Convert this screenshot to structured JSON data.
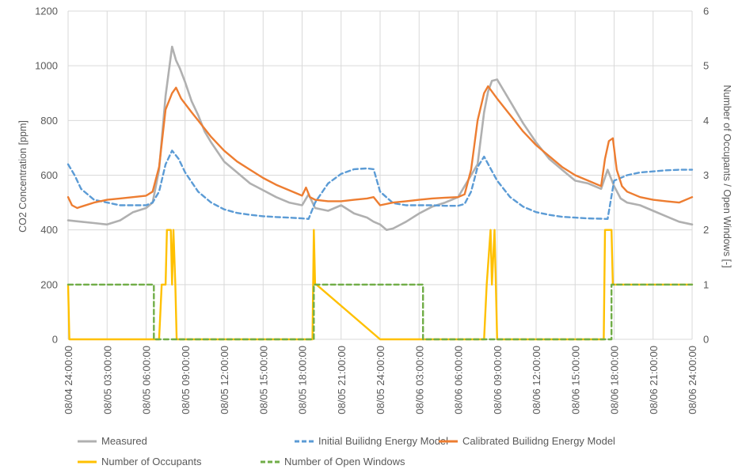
{
  "chart_data": {
    "type": "line",
    "ylabel": "CO2 Concentration [ppm]",
    "y2label": "Number of Occupants / Open Windows [-]",
    "ylim": [
      0,
      1200
    ],
    "y2lim": [
      0,
      6
    ],
    "yticks": [
      "0",
      "200",
      "400",
      "600",
      "800",
      "1000",
      "1200"
    ],
    "y2ticks": [
      "0",
      "1",
      "2",
      "3",
      "4",
      "5",
      "6"
    ],
    "x_unit": "hours from 08/04 24:00:00",
    "xlim": [
      0,
      48
    ],
    "xticks": [
      "08/04 24:00:00",
      "08/05 03:00:00",
      "08/05 06:00:00",
      "08/05 09:00:00",
      "08/05 12:00:00",
      "08/05 15:00:00",
      "08/05 18:00:00",
      "08/05 21:00:00",
      "08/05 24:00:00",
      "08/06 03:00:00",
      "08/06 06:00:00",
      "08/06 09:00:00",
      "08/06 12:00:00",
      "08/06 15:00:00",
      "08/06 18:00:00",
      "08/06 21:00:00",
      "08/06 24:00:00"
    ],
    "grid": true,
    "legend_position": "bottom",
    "series": [
      {
        "name": "Measured",
        "axis": "left",
        "color": "#b0b0b0",
        "style": "solid",
        "x": [
          0,
          1,
          2,
          3,
          4,
          5,
          6,
          6.5,
          7,
          7.5,
          7.8,
          8,
          8.3,
          8.6,
          9,
          9.5,
          10,
          10.5,
          11,
          12,
          13,
          14,
          15,
          16,
          17,
          18,
          18.5,
          19,
          20,
          21,
          22,
          23,
          23.5,
          24,
          24.5,
          25,
          26,
          27,
          28,
          29,
          30,
          31,
          31.5,
          32,
          32.3,
          32.6,
          33,
          33.5,
          34,
          35,
          36,
          37,
          38,
          39,
          40,
          41,
          41.5,
          42,
          42.5,
          43,
          44,
          45,
          46,
          47,
          48
        ],
        "values": [
          435,
          430,
          425,
          420,
          435,
          465,
          480,
          500,
          620,
          890,
          1000,
          1070,
          1020,
          990,
          940,
          870,
          820,
          760,
          720,
          650,
          610,
          570,
          545,
          520,
          500,
          490,
          530,
          480,
          470,
          490,
          460,
          445,
          430,
          420,
          400,
          405,
          430,
          460,
          485,
          500,
          520,
          600,
          640,
          830,
          905,
          945,
          950,
          910,
          870,
          790,
          720,
          660,
          620,
          580,
          570,
          550,
          620,
          560,
          515,
          500,
          490,
          470,
          450,
          430,
          420
        ]
      },
      {
        "name": "Initial Builidng Energy Model",
        "axis": "left",
        "color": "#5b9bd5",
        "style": "dashed",
        "x": [
          0,
          0.5,
          1,
          2,
          3,
          4,
          5,
          6,
          6.5,
          7,
          7.5,
          8,
          8.5,
          9,
          10,
          11,
          12,
          13,
          14,
          15,
          16,
          17,
          18,
          18.5,
          19,
          20,
          21,
          22,
          23,
          23.5,
          24,
          25,
          26,
          27,
          28,
          29,
          30,
          30.5,
          31,
          31.5,
          32,
          33,
          34,
          35,
          36,
          37,
          38,
          39,
          40,
          41,
          41.5,
          42,
          43,
          44,
          45,
          46,
          47,
          48
        ],
        "values": [
          640,
          600,
          550,
          510,
          500,
          490,
          490,
          490,
          500,
          540,
          640,
          690,
          660,
          610,
          540,
          500,
          475,
          462,
          455,
          450,
          447,
          445,
          442,
          440,
          500,
          570,
          605,
          622,
          625,
          622,
          540,
          498,
          490,
          490,
          490,
          488,
          488,
          495,
          540,
          630,
          668,
          580,
          520,
          485,
          465,
          455,
          448,
          445,
          442,
          441,
          440,
          580,
          600,
          610,
          614,
          618,
          620,
          620
        ]
      },
      {
        "name": "Calibrated Builidng Energy Model",
        "axis": "left",
        "color": "#ed7d31",
        "style": "solid",
        "x": [
          0,
          0.3,
          0.7,
          1,
          2,
          3,
          4,
          5,
          6,
          6.5,
          7,
          7.5,
          8,
          8.3,
          8.7,
          9.5,
          10,
          11,
          12,
          13,
          14,
          15,
          16,
          17,
          18,
          18.3,
          18.6,
          19,
          20,
          21,
          22,
          23,
          23.5,
          24,
          25,
          26,
          27,
          28,
          29,
          30,
          30.5,
          31,
          31.5,
          32,
          32.3,
          33,
          34,
          35,
          36,
          37,
          38,
          39,
          40,
          41,
          41.3,
          41.6,
          41.9,
          42.2,
          42.6,
          43,
          44,
          45,
          46,
          47,
          48
        ],
        "values": [
          520,
          490,
          480,
          485,
          500,
          510,
          515,
          520,
          525,
          540,
          630,
          840,
          900,
          920,
          880,
          830,
          800,
          740,
          690,
          650,
          620,
          590,
          565,
          545,
          525,
          555,
          520,
          510,
          505,
          505,
          510,
          515,
          520,
          490,
          500,
          505,
          510,
          515,
          518,
          520,
          530,
          620,
          800,
          900,
          925,
          880,
          820,
          760,
          710,
          670,
          630,
          600,
          580,
          560,
          660,
          725,
          735,
          620,
          560,
          540,
          520,
          510,
          505,
          500,
          520
        ]
      },
      {
        "name": "Number of Occupants",
        "axis": "right",
        "color": "#ffc000",
        "style": "solid",
        "x": [
          0,
          0.1,
          7,
          7.2,
          7.5,
          7.6,
          7.9,
          8,
          8.1,
          8.25,
          8.35,
          8.5,
          18.8,
          18.9,
          19.0,
          19.1,
          24,
          32,
          32.2,
          32.5,
          32.6,
          32.8,
          33,
          41.2,
          41.3,
          41.8,
          41.9,
          48
        ],
        "values": [
          1,
          0,
          0,
          1,
          1,
          2,
          2,
          1,
          2,
          1,
          0,
          0,
          0,
          2,
          1,
          1,
          0,
          0,
          1,
          2,
          1,
          2,
          0,
          0,
          2,
          2,
          1,
          1
        ]
      },
      {
        "name": "Number of Open Windows",
        "axis": "right",
        "color": "#70ad47",
        "style": "dashed",
        "x": [
          0,
          6.6,
          6.6,
          18.9,
          18.9,
          27.3,
          27.3,
          41.8,
          41.8,
          48
        ],
        "values": [
          1,
          1,
          0,
          0,
          1,
          1,
          0,
          0,
          1,
          1
        ]
      }
    ]
  }
}
